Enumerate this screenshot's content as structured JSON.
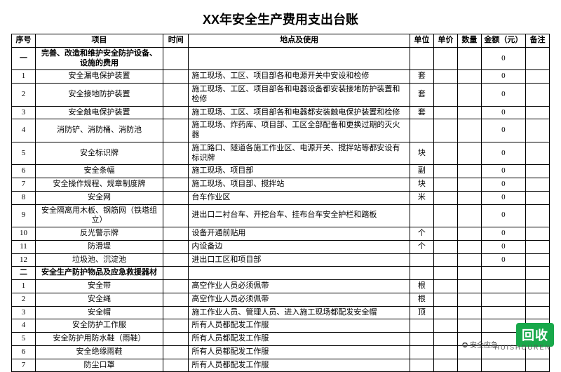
{
  "title": "XX年安全生产费用支出台账",
  "columns": [
    "序号",
    "项目",
    "时间",
    "地点及使用",
    "单位",
    "单价",
    "数量",
    "金额（元）",
    "备注"
  ],
  "sections": [
    {
      "seq": "一",
      "heading": "完善、改造和维护安全防护设备、设施的费用",
      "amount": "0",
      "rows": [
        {
          "no": "1",
          "project": "安全漏电保护装置",
          "loc": "施工现场、工区、项目部各和电源开关中安设和检修",
          "unit": "套",
          "amount": "0"
        },
        {
          "no": "2",
          "project": "安全接地防护装置",
          "loc": "施工现场、工区、项目部各和电器设备都安装接地防护装置和检修",
          "unit": "套",
          "amount": "0"
        },
        {
          "no": "3",
          "project": "安全触电保护装置",
          "loc": "施工现场、工区、项目部各和电器都安装触电保护装置和检修",
          "unit": "套",
          "amount": "0"
        },
        {
          "no": "4",
          "project": "消防铲、消防桶、消防池",
          "loc": "施工现场、炸药库、项目部、工区全部配备和更换过期的灭火器",
          "unit": "",
          "amount": "0"
        },
        {
          "no": "5",
          "project": "安全标识牌",
          "loc": "施工路口、隧道各施工作业区、电源开关、搅拌站等都安设有标识牌",
          "unit": "块",
          "amount": "0"
        },
        {
          "no": "6",
          "project": "安全条幅",
          "loc": "施工现场、项目部",
          "unit": "副",
          "amount": "0"
        },
        {
          "no": "7",
          "project": "安全操作规程、规章制度牌",
          "loc": "施工现场、项目部、搅拌站",
          "unit": "块",
          "amount": "0"
        },
        {
          "no": "8",
          "project": "安全网",
          "loc": "台车作业区",
          "unit": "米",
          "amount": "0"
        },
        {
          "no": "9",
          "project": "安全隔离用木板、钢筋网（铁塔组立）",
          "loc": "进出口二衬台车、开挖台车、挂布台车安全护栏和踏板",
          "unit": "",
          "amount": "0"
        },
        {
          "no": "10",
          "project": "反光警示牌",
          "loc": "设备开通前贴用",
          "unit": "个",
          "amount": "0"
        },
        {
          "no": "11",
          "project": "防滑堤",
          "loc": "内设备边",
          "unit": "个",
          "amount": "0"
        },
        {
          "no": "12",
          "project": "垃圾池、沉淀池",
          "loc": "进出口工区和项目部",
          "unit": "",
          "amount": "0"
        }
      ]
    },
    {
      "seq": "二",
      "heading": "安全生产防护物品及应急救援器材",
      "amount": "",
      "rows": [
        {
          "no": "1",
          "project": "安全带",
          "loc": "高空作业人员必须佩带",
          "unit": "根",
          "amount": ""
        },
        {
          "no": "2",
          "project": "安全绳",
          "loc": "高空作业人员必须佩带",
          "unit": "根",
          "amount": ""
        },
        {
          "no": "3",
          "project": "安全帽",
          "loc": "施工作业人员、管理人员、进入施工现场都配发安全帽",
          "unit": "顶",
          "amount": ""
        },
        {
          "no": "4",
          "project": "安全防护工作服",
          "loc": "所有人员都配发工作服",
          "unit": "",
          "amount": ""
        },
        {
          "no": "5",
          "project": "安全防护用防水鞋（雨鞋）",
          "loc": "所有人员都配发工作服",
          "unit": "",
          "amount": ""
        },
        {
          "no": "6",
          "project": "安全绝缘雨鞋",
          "loc": "所有人员都配发工作服",
          "unit": "",
          "amount": ""
        },
        {
          "no": "7",
          "project": "防尘口罩",
          "loc": "所有人员都配发工作服",
          "unit": "",
          "amount": ""
        }
      ]
    }
  ],
  "watermark": {
    "badge": "回收",
    "sub": "HUISHOUREN",
    "icon": "✪ 安全应急"
  },
  "colors": {
    "border": "#000000",
    "badge_bg": "#18a84a",
    "badge_fg": "#ffffff"
  }
}
